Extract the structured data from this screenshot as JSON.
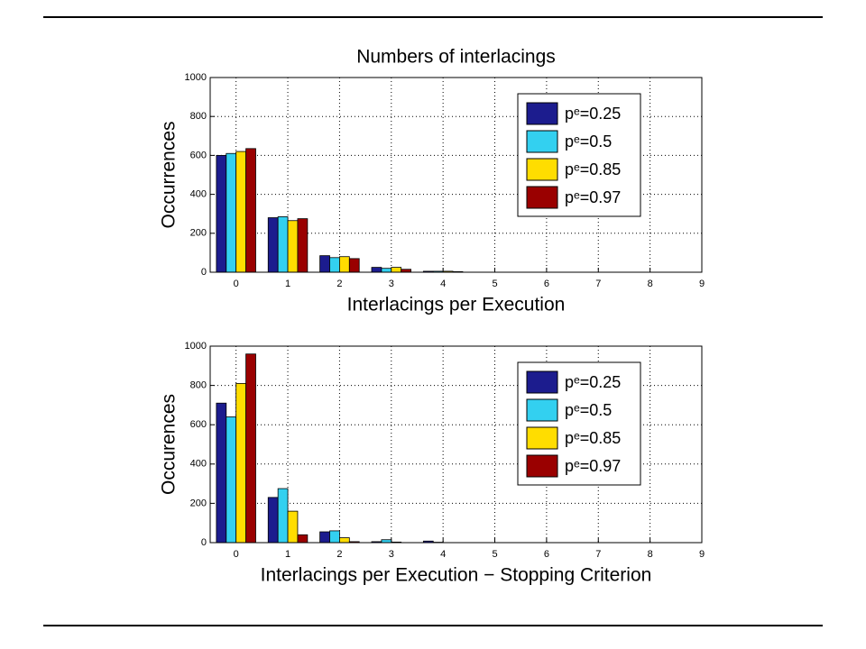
{
  "chart_data": [
    {
      "type": "bar",
      "title": "Numbers of interlacings",
      "xlabel": "Interlacings per Execution",
      "ylabel": "Occurrences",
      "x": [
        0,
        1,
        2,
        3,
        4,
        5,
        6,
        7,
        8,
        9
      ],
      "series": [
        {
          "name": "pᵉ=0.25",
          "color": "#1c1c8e",
          "values": [
            600,
            280,
            85,
            25,
            5,
            0,
            0,
            0,
            0,
            0
          ]
        },
        {
          "name": "pᵉ=0.5",
          "color": "#33d0f0",
          "values": [
            610,
            285,
            75,
            20,
            5,
            0,
            0,
            0,
            0,
            0
          ]
        },
        {
          "name": "pᵉ=0.85",
          "color": "#ffdd00",
          "values": [
            620,
            265,
            80,
            25,
            5,
            0,
            0,
            0,
            0,
            0
          ]
        },
        {
          "name": "pᵉ=0.97",
          "color": "#9a0000",
          "values": [
            635,
            275,
            70,
            15,
            3,
            0,
            0,
            0,
            0,
            0
          ]
        }
      ],
      "xlim": [
        -0.5,
        9
      ],
      "xticks": [
        0,
        1,
        2,
        3,
        4,
        5,
        6,
        7,
        8,
        9
      ],
      "ylim": [
        0,
        1000
      ],
      "yticks": [
        0,
        200,
        400,
        600,
        800,
        1000
      ],
      "grid": true,
      "legend": "upper right"
    },
    {
      "type": "bar",
      "xlabel": "Interlacings per Execution − Stopping Criterion",
      "ylabel": "Occurences",
      "x": [
        0,
        1,
        2,
        3,
        4,
        5,
        6,
        7,
        8,
        9
      ],
      "series": [
        {
          "name": "pᵉ=0.25",
          "color": "#1c1c8e",
          "values": [
            710,
            230,
            55,
            5,
            8,
            0,
            0,
            0,
            0,
            0
          ]
        },
        {
          "name": "pᵉ=0.5",
          "color": "#33d0f0",
          "values": [
            640,
            275,
            60,
            15,
            2,
            0,
            0,
            0,
            0,
            0
          ]
        },
        {
          "name": "pᵉ=0.85",
          "color": "#ffdd00",
          "values": [
            810,
            160,
            25,
            3,
            0,
            0,
            0,
            0,
            0,
            0
          ]
        },
        {
          "name": "pᵉ=0.97",
          "color": "#9a0000",
          "values": [
            960,
            40,
            5,
            0,
            0,
            0,
            0,
            0,
            0,
            0
          ]
        }
      ],
      "xlim": [
        -0.5,
        9
      ],
      "xticks": [
        0,
        1,
        2,
        3,
        4,
        5,
        6,
        7,
        8,
        9
      ],
      "ylim": [
        0,
        1000
      ],
      "yticks": [
        0,
        200,
        400,
        600,
        800,
        1000
      ],
      "grid": true,
      "legend": "upper right"
    }
  ]
}
